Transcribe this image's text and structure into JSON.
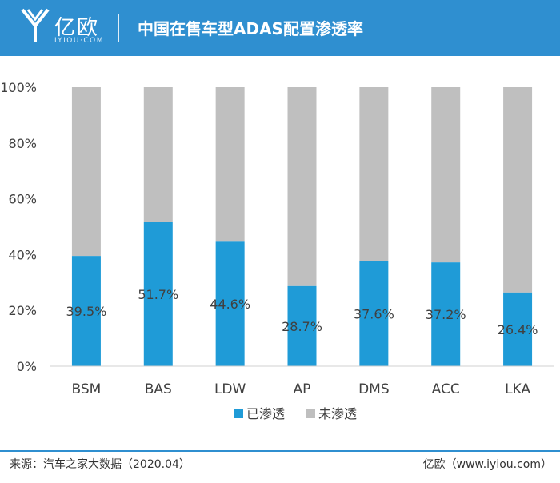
{
  "header": {
    "logo_text": "亿欧",
    "logo_sub": "IYIOU·COM",
    "title": "中国在售车型ADAS配置渗透率"
  },
  "colors": {
    "header_bg": "#2f8fd0",
    "penetrated": "#1f9bd7",
    "not_penetrated": "#bfbfbf"
  },
  "chart_data": {
    "type": "bar",
    "stacked": true,
    "percent": true,
    "categories": [
      "BSM",
      "BAS",
      "LDW",
      "AP",
      "DMS",
      "ACC",
      "LKA"
    ],
    "series": [
      {
        "name": "已渗透",
        "values": [
          39.5,
          51.7,
          44.6,
          28.7,
          37.6,
          37.2,
          26.4
        ]
      },
      {
        "name": "未渗透",
        "values": [
          60.5,
          48.3,
          55.4,
          71.3,
          62.4,
          62.8,
          73.6
        ]
      }
    ],
    "data_labels": [
      "39.5%",
      "51.7%",
      "44.6%",
      "28.7%",
      "37.6%",
      "37.2%",
      "26.4%"
    ],
    "y_ticks": [
      "0%",
      "20%",
      "40%",
      "60%",
      "80%",
      "100%"
    ],
    "ylim": [
      0,
      100
    ],
    "legend_position": "bottom",
    "grid": false
  },
  "footer": {
    "source": "来源：汽车之家大数据（2020.04）",
    "site": "亿欧（www.iyiou.com）"
  }
}
